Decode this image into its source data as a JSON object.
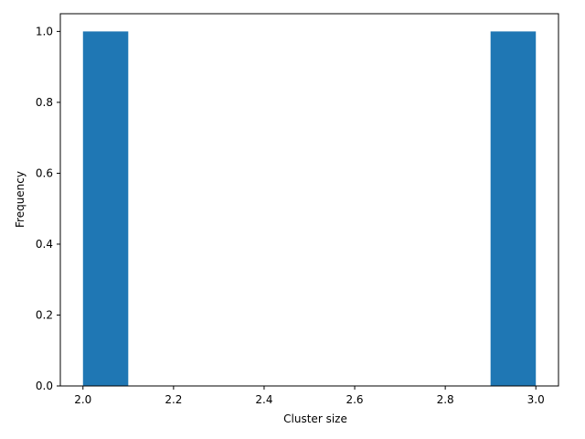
{
  "chart_data": {
    "type": "bar",
    "title": "",
    "xlabel": "Cluster size",
    "ylabel": "Frequency",
    "xlim": [
      1.95,
      3.05
    ],
    "ylim": [
      0,
      1.05
    ],
    "bins": [
      {
        "start": 2.0,
        "end": 2.1,
        "value": 1
      },
      {
        "start": 2.1,
        "end": 2.2,
        "value": 0
      },
      {
        "start": 2.2,
        "end": 2.3,
        "value": 0
      },
      {
        "start": 2.3,
        "end": 2.4,
        "value": 0
      },
      {
        "start": 2.4,
        "end": 2.5,
        "value": 0
      },
      {
        "start": 2.5,
        "end": 2.6,
        "value": 0
      },
      {
        "start": 2.6,
        "end": 2.7,
        "value": 0
      },
      {
        "start": 2.7,
        "end": 2.8,
        "value": 0
      },
      {
        "start": 2.8,
        "end": 2.9,
        "value": 0
      },
      {
        "start": 2.9,
        "end": 3.0,
        "value": 1
      }
    ],
    "xticks": [
      2.0,
      2.2,
      2.4,
      2.6,
      2.8,
      3.0
    ],
    "xtick_labels": [
      "2.0",
      "2.2",
      "2.4",
      "2.6",
      "2.8",
      "3.0"
    ],
    "yticks": [
      0.0,
      0.2,
      0.4,
      0.6,
      0.8,
      1.0
    ],
    "ytick_labels": [
      "0.0",
      "0.2",
      "0.4",
      "0.6",
      "0.8",
      "1.0"
    ],
    "bar_color": "#1f77b4",
    "grid": false,
    "legend": "none"
  }
}
